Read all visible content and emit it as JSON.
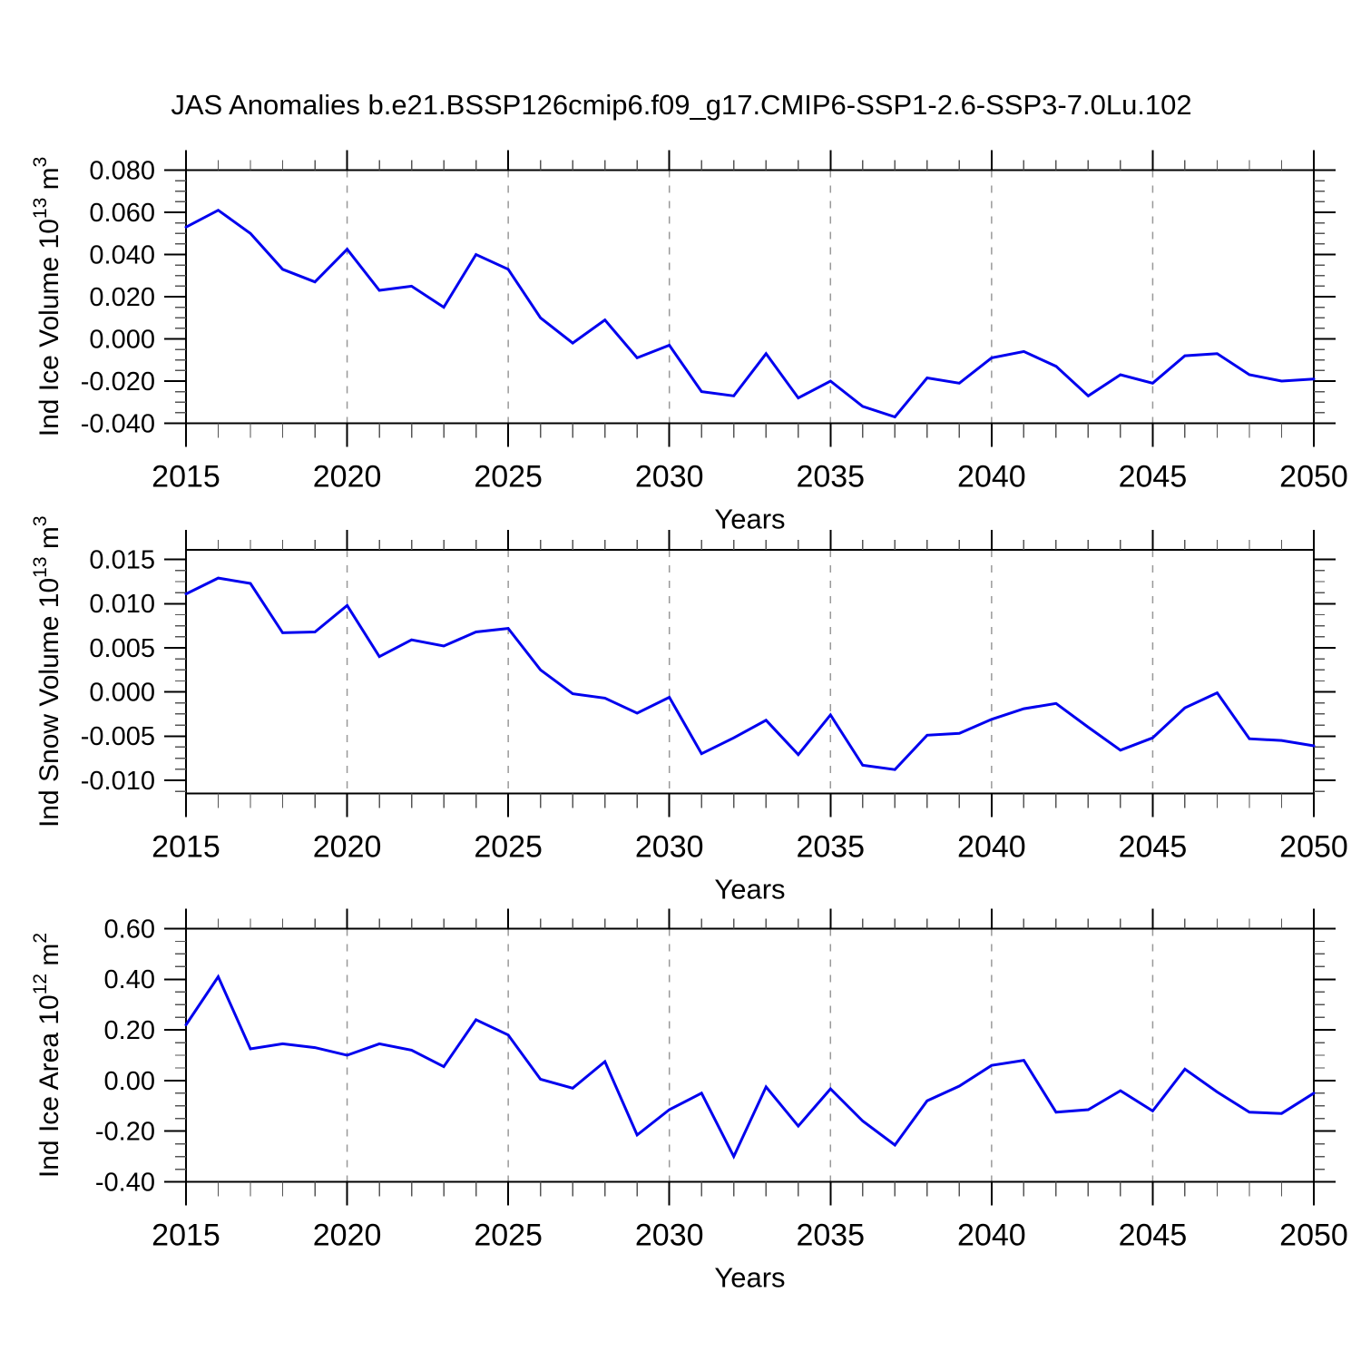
{
  "title": "JAS Anomalies b.e21.BSSP126cmip6.f09_g17.CMIP6-SSP1-2.6-SSP3-7.0Lu.102",
  "colors": {
    "line": "#0000ee",
    "grid": "#999999",
    "axis": "#000000",
    "minor_tick": "#555555"
  },
  "x_axis": {
    "label": "Years",
    "start_year": 2015,
    "end_year": 2050,
    "minor_step": 1,
    "major_step": 5,
    "tick_labels": [
      "2015",
      "2020",
      "2025",
      "2030",
      "2035",
      "2040",
      "2045",
      "2050"
    ],
    "tick_values": [
      2015,
      2020,
      2025,
      2030,
      2035,
      2040,
      2045,
      2050
    ],
    "gridline_years": [
      2020,
      2025,
      2030,
      2035,
      2040,
      2045
    ]
  },
  "chart_data": [
    {
      "type": "line",
      "name": "ind-ice-volume",
      "ylabel_text": "Ind Ice Volume 10^13 m^3",
      "ylabel_parts": {
        "prefix": "Ind Ice Volume 10",
        "exp": "13",
        "mid": " m",
        "exp2": "3"
      },
      "ylim": [
        -0.04,
        0.08
      ],
      "y_tick_labels": [
        "0.080",
        "0.060",
        "0.040",
        "0.020",
        "0.000",
        "-0.020",
        "-0.040"
      ],
      "y_tick_values": [
        0.08,
        0.06,
        0.04,
        0.02,
        0.0,
        -0.02,
        -0.04
      ],
      "y_minor_step": 0.005,
      "years": [
        2015,
        2016,
        2017,
        2018,
        2019,
        2020,
        2021,
        2022,
        2023,
        2024,
        2025,
        2026,
        2027,
        2028,
        2029,
        2030,
        2031,
        2032,
        2033,
        2034,
        2035,
        2036,
        2037,
        2038,
        2039,
        2040,
        2041,
        2042,
        2043,
        2044,
        2045,
        2046,
        2047,
        2048,
        2049,
        2050
      ],
      "values": [
        0.053,
        0.061,
        0.05,
        0.033,
        0.027,
        0.0425,
        0.023,
        0.025,
        0.015,
        0.04,
        0.033,
        0.01,
        -0.002,
        0.009,
        -0.009,
        -0.003,
        -0.025,
        -0.027,
        -0.007,
        -0.028,
        -0.02,
        -0.032,
        -0.037,
        -0.0185,
        -0.021,
        -0.009,
        -0.006,
        -0.013,
        -0.027,
        -0.017,
        -0.021,
        -0.008,
        -0.007,
        -0.017,
        -0.02,
        -0.019
      ]
    },
    {
      "type": "line",
      "name": "ind-snow-volume",
      "ylabel_text": "Ind Snow Volume 10^13 m^3",
      "ylabel_parts": {
        "prefix": "Ind Snow Volume 10",
        "exp": "13",
        "mid": " m",
        "exp2": "3"
      },
      "ylim": [
        -0.0115,
        0.0161
      ],
      "y_tick_labels": [
        "0.015",
        "0.010",
        "0.005",
        "0.000",
        "-0.005",
        "-0.010"
      ],
      "y_tick_values": [
        0.015,
        0.01,
        0.005,
        0.0,
        -0.005,
        -0.01
      ],
      "y_minor_step": 0.00125,
      "years": [
        2015,
        2016,
        2017,
        2018,
        2019,
        2020,
        2021,
        2022,
        2023,
        2024,
        2025,
        2026,
        2027,
        2028,
        2029,
        2030,
        2031,
        2032,
        2033,
        2034,
        2035,
        2036,
        2037,
        2038,
        2039,
        2040,
        2041,
        2042,
        2043,
        2044,
        2045,
        2046,
        2047,
        2048,
        2049,
        2050
      ],
      "values": [
        0.0111,
        0.0129,
        0.0123,
        0.0067,
        0.0068,
        0.0098,
        0.004,
        0.0059,
        0.0052,
        0.0068,
        0.0072,
        0.0025,
        -0.0002,
        -0.0007,
        -0.0024,
        -0.0006,
        -0.007,
        -0.0052,
        -0.0032,
        -0.0071,
        -0.0026,
        -0.0083,
        -0.0088,
        -0.0049,
        -0.0047,
        -0.0031,
        -0.0019,
        -0.0013,
        -0.004,
        -0.0066,
        -0.0052,
        -0.0018,
        -0.0001,
        -0.0053,
        -0.0055,
        -0.0061
      ]
    },
    {
      "type": "line",
      "name": "ind-ice-area",
      "ylabel_text": "Ind Ice Area 10^12 m^2",
      "ylabel_parts": {
        "prefix": "Ind Ice Area 10",
        "exp": "12",
        "mid": " m",
        "exp2": "2"
      },
      "ylim": [
        -0.4,
        0.6
      ],
      "y_tick_labels": [
        "0.60",
        "0.40",
        "0.20",
        "0.00",
        "-0.20",
        "-0.40"
      ],
      "y_tick_values": [
        0.6,
        0.4,
        0.2,
        0.0,
        -0.2,
        -0.4
      ],
      "y_minor_step": 0.05,
      "years": [
        2015,
        2016,
        2017,
        2018,
        2019,
        2020,
        2021,
        2022,
        2023,
        2024,
        2025,
        2026,
        2027,
        2028,
        2029,
        2030,
        2031,
        2032,
        2033,
        2034,
        2035,
        2036,
        2037,
        2038,
        2039,
        2040,
        2041,
        2042,
        2043,
        2044,
        2045,
        2046,
        2047,
        2048,
        2049,
        2050
      ],
      "values": [
        0.22,
        0.41,
        0.125,
        0.145,
        0.13,
        0.1,
        0.145,
        0.12,
        0.055,
        0.24,
        0.18,
        0.005,
        -0.03,
        0.075,
        -0.215,
        -0.115,
        -0.05,
        -0.3,
        -0.025,
        -0.18,
        -0.033,
        -0.16,
        -0.255,
        -0.08,
        -0.022,
        0.06,
        0.08,
        -0.125,
        -0.115,
        -0.04,
        -0.12,
        0.045,
        -0.045,
        -0.125,
        -0.13,
        -0.05
      ]
    }
  ]
}
